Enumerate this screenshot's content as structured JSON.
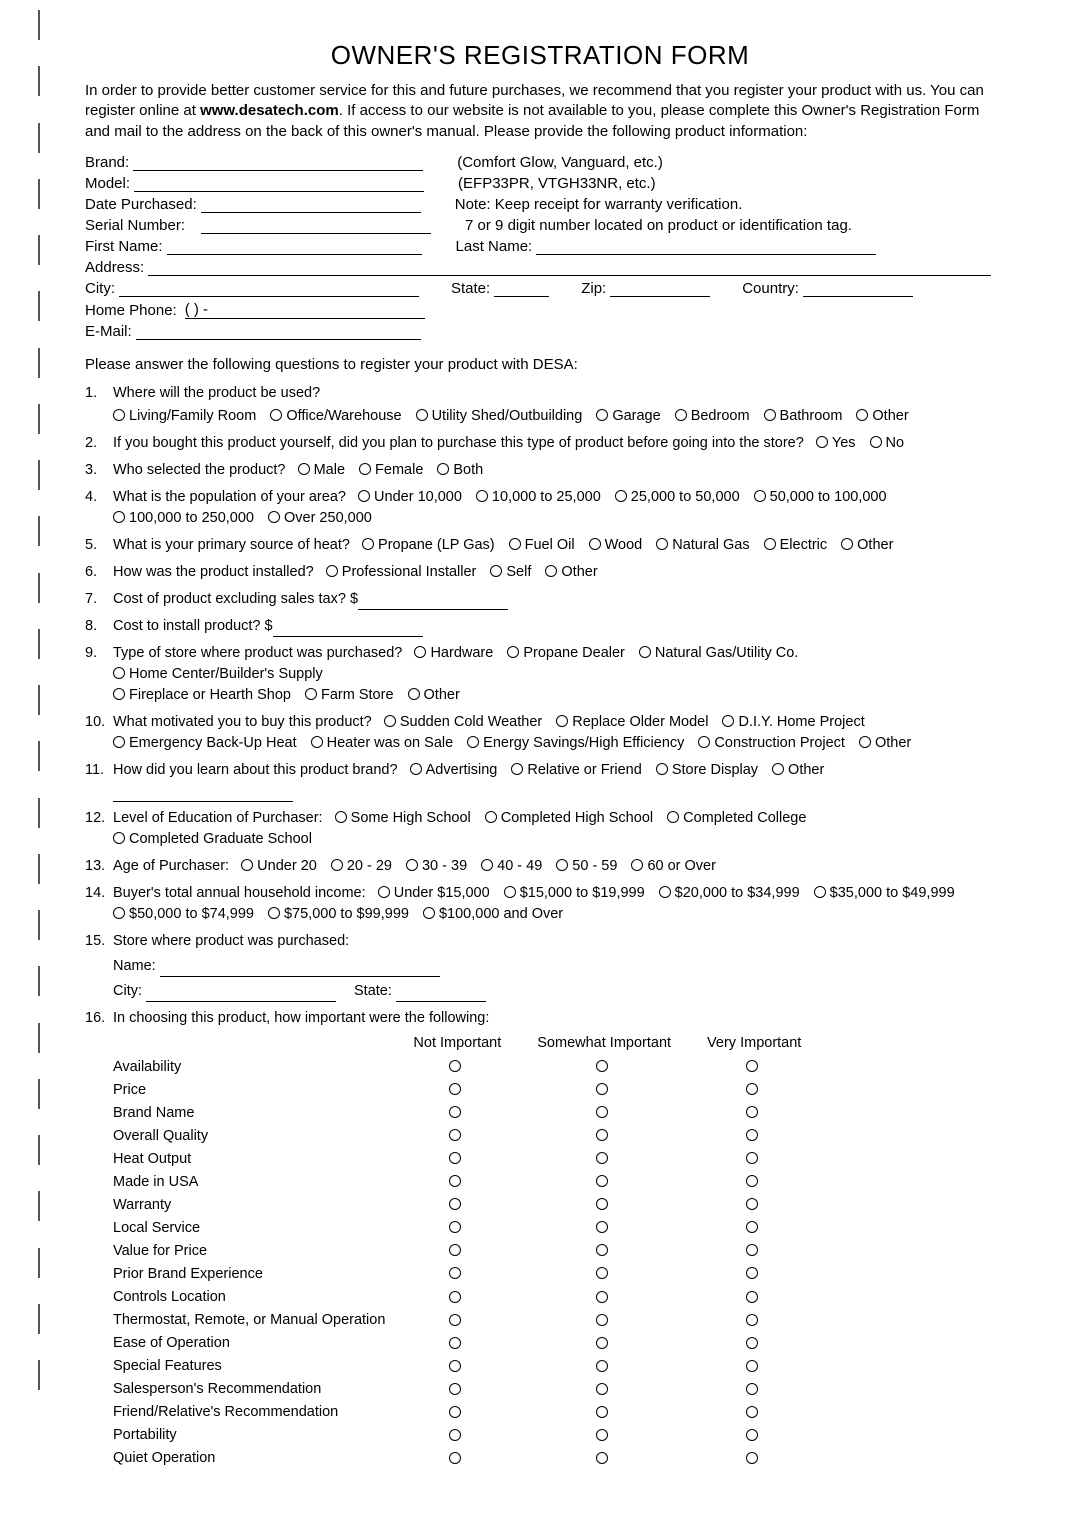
{
  "title": "OWNER'S REGISTRATION FORM",
  "intro_parts": {
    "pre": "In order to provide better customer service for this and future purchases, we recommend that you register your product with us. You can register online at ",
    "bold": "www.desatech.com",
    "post": ". If access to our website is not available to you, please complete this Owner's Registration Form and mail to the address on the back of this owner's manual. Please provide the following product information:"
  },
  "fields": {
    "brand": {
      "label": "Brand:",
      "hint": "(Comfort Glow, Vanguard, etc.)"
    },
    "model": {
      "label": "Model:",
      "hint": "(EFP33PR, VTGH33NR, etc.)"
    },
    "date_purchased": {
      "label": "Date Purchased:",
      "hint": "Note: Keep receipt for warranty verification."
    },
    "serial": {
      "label": "Serial Number:",
      "hint": "7 or 9 digit number located on product or identification tag."
    },
    "first_name": {
      "label": "First Name:"
    },
    "last_name": {
      "label": "Last Name:"
    },
    "address": {
      "label": "Address:"
    },
    "city": {
      "label": "City:"
    },
    "state": {
      "label": "State:"
    },
    "zip": {
      "label": "Zip:"
    },
    "country": {
      "label": "Country:"
    },
    "home_phone": {
      "label": "Home Phone:",
      "template": "(          )          -"
    },
    "email": {
      "label": "E-Mail:"
    }
  },
  "section_lead": "Please answer the following questions to register your product with DESA:",
  "questions": [
    {
      "n": "1.",
      "text": "Where will the product be used?",
      "opts": [
        "Living/Family Room",
        "Office/Warehouse",
        "Utility Shed/Outbuilding",
        "Garage",
        "Bedroom",
        "Bathroom",
        "Other"
      ],
      "opts_newline": true
    },
    {
      "n": "2.",
      "text": "If you bought this product yourself, did you plan to purchase this type of product before going into the store?",
      "opts": [
        "Yes",
        "No"
      ],
      "inline": true
    },
    {
      "n": "3.",
      "text": "Who selected the product?",
      "opts": [
        "Male",
        "Female",
        "Both"
      ],
      "inline": true
    },
    {
      "n": "4.",
      "text": "What is the population of your area?",
      "opts": [
        "Under 10,000",
        "10,000 to 25,000",
        "25,000 to 50,000",
        "50,000 to 100,000",
        "100,000 to 250,000",
        "Over 250,000"
      ],
      "inline": true,
      "break_after": 4
    },
    {
      "n": "5.",
      "text": "What is your primary source of heat?",
      "opts": [
        "Propane (LP Gas)",
        "Fuel Oil",
        "Wood",
        "Natural Gas",
        "Electric",
        "Other"
      ],
      "inline": true
    },
    {
      "n": "6.",
      "text": "How was the product installed?",
      "opts": [
        "Professional Installer",
        "Self",
        "Other"
      ],
      "inline": true
    },
    {
      "n": "7.",
      "text": "Cost of product excluding sales tax? $",
      "blank_after": true
    },
    {
      "n": "8.",
      "text": "Cost to install product? $",
      "blank_after": true
    },
    {
      "n": "9.",
      "text": "Type of store where product was purchased?",
      "opts": [
        "Hardware",
        "Propane Dealer",
        "Natural Gas/Utility Co.",
        "Home Center/Builder's Supply",
        "Fireplace or Hearth Shop",
        "Farm Store",
        "Other"
      ],
      "inline": true,
      "break_after": 4
    },
    {
      "n": "10.",
      "text": "What motivated you to buy this product?",
      "opts": [
        "Sudden Cold Weather",
        "Replace Older Model",
        "D.I.Y. Home Project",
        "Emergency Back-Up Heat",
        "Heater was on Sale",
        "Energy Savings/High Efficiency",
        "Construction Project",
        "Other"
      ],
      "inline": true,
      "break_after": 3
    },
    {
      "n": "11.",
      "text": "How did you learn about this product brand?",
      "opts": [
        "Advertising",
        "Relative or Friend",
        "Store Display",
        "Other"
      ],
      "inline": true,
      "trailing_blank": true
    },
    {
      "n": "12.",
      "text": "Level of Education of Purchaser:",
      "opts": [
        "Some High School",
        "Completed High School",
        "Completed College",
        "Completed Graduate School"
      ],
      "inline": true
    },
    {
      "n": "13.",
      "text": "Age of Purchaser:",
      "opts": [
        "Under 20",
        "20 - 29",
        "30 - 39",
        "40 - 49",
        "50 - 59",
        "60 or Over"
      ],
      "inline": true
    },
    {
      "n": "14.",
      "text": "Buyer's total annual household income:",
      "opts": [
        "Under $15,000",
        "$15,000 to $19,999",
        "$20,000 to $34,999",
        "$35,000 to $49,999",
        "$50,000 to $74,999",
        "$75,000 to $99,999",
        "$100,000 and Over"
      ],
      "inline": true,
      "break_after": 4
    },
    {
      "n": "15.",
      "text": "Store where product was purchased:",
      "store": {
        "name": "Name:",
        "city": "City:",
        "state": "State:"
      }
    },
    {
      "n": "16.",
      "text": "In choosing this product, how important were the following:"
    }
  ],
  "importance": {
    "headers": [
      "Not Important",
      "Somewhat Important",
      "Very Important"
    ],
    "rows": [
      "Availability",
      "Price",
      "Brand Name",
      "Overall Quality",
      "Heat Output",
      "Made in USA",
      "Warranty",
      "Local Service",
      "Value for Price",
      "Prior Brand Experience",
      "Controls Location",
      "Thermostat, Remote, or Manual Operation",
      "Ease of Operation",
      "Special Features",
      "Salesperson's Recommendation",
      "Friend/Relative's Recommendation",
      "Portability",
      "Quiet Operation"
    ]
  },
  "style": {
    "text_color": "#000000",
    "background": "#ffffff",
    "radio_border": "#000000"
  }
}
